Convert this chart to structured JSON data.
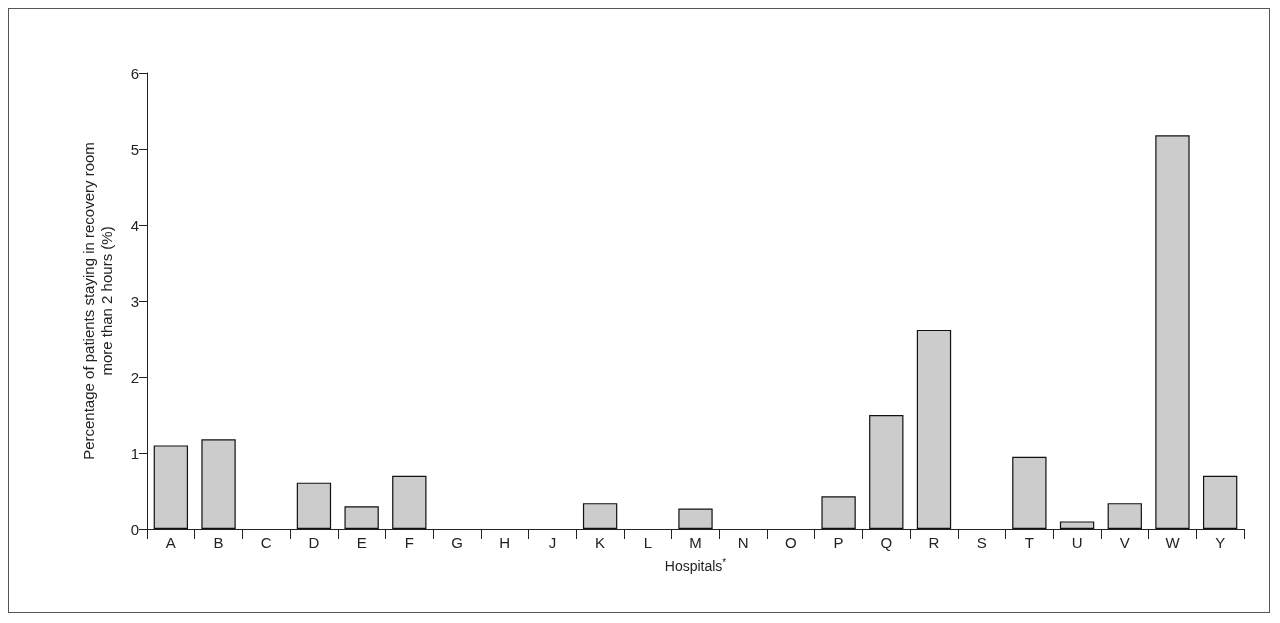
{
  "chart_data": {
    "type": "bar",
    "xlabel": "Hospitals$^{*}$",
    "ylabel": "Percentage of patients staying in recovery room\nmore than 2 hours (%)",
    "categories": [
      "A",
      "B",
      "C",
      "D",
      "E",
      "F",
      "G",
      "H",
      "J",
      "K",
      "L",
      "M",
      "N",
      "O",
      "P",
      "Q",
      "R",
      "S",
      "T",
      "U",
      "V",
      "W",
      "Y"
    ],
    "values": [
      1.1,
      1.18,
      0,
      0.61,
      0.3,
      0.7,
      0,
      0,
      0,
      0.34,
      0,
      0.27,
      0,
      0,
      0.43,
      1.5,
      2.62,
      0,
      0.95,
      0.1,
      0.34,
      5.18,
      0.7
    ],
    "color": "#cccccc",
    "ylim": [
      0,
      6
    ],
    "yticks": [
      0,
      1,
      2,
      3,
      4,
      5,
      6
    ],
    "grid": false
  }
}
